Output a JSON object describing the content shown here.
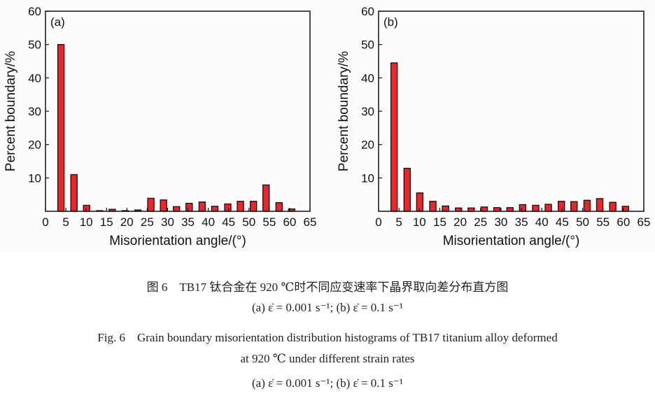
{
  "chart_data": [
    {
      "type": "bar",
      "panel_label": "(a)",
      "xlabel": "Misorientation angle/(°)",
      "ylabel": "Percent boundary/%",
      "xlim": [
        0,
        65
      ],
      "ylim": [
        0,
        60
      ],
      "xticks": [
        0,
        5,
        10,
        15,
        20,
        25,
        30,
        35,
        40,
        45,
        50,
        55,
        60,
        65
      ],
      "yticks": [
        10,
        20,
        30,
        40,
        50,
        60
      ],
      "x": [
        3.8,
        7.0,
        10.1,
        13.3,
        16.4,
        19.6,
        22.7,
        25.9,
        29.0,
        32.2,
        35.3,
        38.5,
        41.6,
        44.8,
        47.9,
        51.1,
        54.2,
        57.4,
        60.5
      ],
      "values": [
        50,
        11,
        1.8,
        0.2,
        0.6,
        0.2,
        0.4,
        3.9,
        3.4,
        1.4,
        2.4,
        2.8,
        1.5,
        2.2,
        3.0,
        3.0,
        7.9,
        2.6,
        0.7
      ],
      "bar_color": "#e8262b",
      "grid": false
    },
    {
      "type": "bar",
      "panel_label": "(b)",
      "xlabel": "Misorientation angle/(°)",
      "ylabel": "Percent boundary/%",
      "xlim": [
        0,
        65
      ],
      "ylim": [
        0,
        60
      ],
      "xticks": [
        0,
        5,
        10,
        15,
        20,
        25,
        30,
        35,
        40,
        45,
        50,
        55,
        60,
        65
      ],
      "yticks": [
        10,
        20,
        30,
        40,
        50,
        60
      ],
      "x": [
        3.8,
        7.0,
        10.1,
        13.3,
        16.4,
        19.6,
        22.7,
        25.9,
        29.0,
        32.2,
        35.3,
        38.5,
        41.6,
        44.8,
        47.9,
        51.1,
        54.2,
        57.4,
        60.5
      ],
      "values": [
        44.5,
        12.9,
        5.5,
        3.0,
        1.6,
        1.0,
        1.0,
        1.3,
        1.1,
        1.1,
        2.0,
        1.8,
        2.1,
        3.0,
        2.9,
        3.3,
        3.8,
        2.7,
        1.5
      ],
      "bar_color": "#e8262b",
      "grid": false
    }
  ],
  "caption": {
    "cn_title": "图 6　TB17 钛合金在 920 ℃时不同应变速率下晶界取向差分布直方图",
    "cn_sub": "(a) ε̇ = 0.001 s⁻¹; (b) ε̇ = 0.1 s⁻¹",
    "en_title_1": "Fig. 6　Grain boundary misorientation distribution histograms of TB17 titanium alloy deformed",
    "en_title_2": "at 920 ℃ under different strain rates",
    "en_sub": "(a) ε̇ = 0.001 s⁻¹; (b) ε̇ = 0.1 s⁻¹"
  }
}
